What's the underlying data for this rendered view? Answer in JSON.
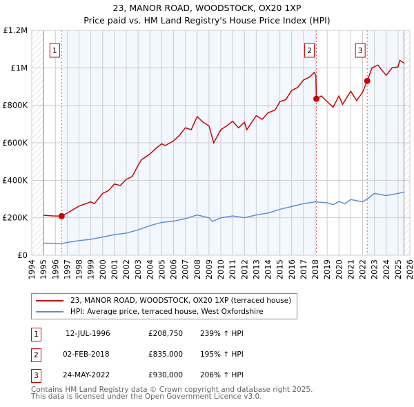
{
  "chart_data": {
    "type": "line",
    "title": "23, MANOR ROAD, WOODSTOCK, OX20 1XP",
    "subtitle": "Price paid vs. HM Land Registry's House Price Index (HPI)",
    "xlim": [
      1994,
      2026
    ],
    "ylim": [
      0,
      1200000
    ],
    "x_ticks": [
      "1994",
      "1995",
      "1996",
      "1997",
      "1998",
      "1999",
      "2000",
      "2001",
      "2002",
      "2003",
      "2004",
      "2005",
      "2006",
      "2007",
      "2008",
      "2009",
      "2010",
      "2011",
      "2012",
      "2013",
      "2014",
      "2015",
      "2016",
      "2017",
      "2018",
      "2019",
      "2020",
      "2021",
      "2022",
      "2023",
      "2024",
      "2025",
      "2026"
    ],
    "y_ticks": [
      {
        "v": 0,
        "label": "£0"
      },
      {
        "v": 200000,
        "label": "£200K"
      },
      {
        "v": 400000,
        "label": "£400K"
      },
      {
        "v": 600000,
        "label": "£600K"
      },
      {
        "v": 800000,
        "label": "£800K"
      },
      {
        "v": 1000000,
        "label": "£1M"
      },
      {
        "v": 1200000,
        "label": "£1.2M"
      }
    ],
    "grid": true,
    "data_range": [
      1995,
      2025.5
    ],
    "series": [
      {
        "name": "23, MANOR ROAD, WOODSTOCK, OX20 1XP (terraced house)",
        "color": "#cc0000",
        "points": [
          [
            1995,
            213000
          ],
          [
            1995.8,
            210000
          ],
          [
            1996.53,
            208750
          ],
          [
            1997,
            225000
          ],
          [
            1998,
            262000
          ],
          [
            1999,
            285000
          ],
          [
            1999.3,
            275000
          ],
          [
            2000,
            330000
          ],
          [
            2000.5,
            345000
          ],
          [
            2001,
            380000
          ],
          [
            2001.5,
            372000
          ],
          [
            2002,
            405000
          ],
          [
            2002.5,
            420000
          ],
          [
            2003,
            480000
          ],
          [
            2003.3,
            510000
          ],
          [
            2004,
            540000
          ],
          [
            2004.5,
            570000
          ],
          [
            2005,
            595000
          ],
          [
            2005.3,
            585000
          ],
          [
            2006,
            610000
          ],
          [
            2006.5,
            640000
          ],
          [
            2007,
            680000
          ],
          [
            2007.5,
            670000
          ],
          [
            2008,
            740000
          ],
          [
            2008.5,
            710000
          ],
          [
            2009,
            690000
          ],
          [
            2009.4,
            600000
          ],
          [
            2010,
            670000
          ],
          [
            2010.5,
            690000
          ],
          [
            2011,
            715000
          ],
          [
            2011.5,
            680000
          ],
          [
            2012,
            710000
          ],
          [
            2012.2,
            670000
          ],
          [
            2013,
            745000
          ],
          [
            2013.5,
            725000
          ],
          [
            2014,
            760000
          ],
          [
            2014.6,
            775000
          ],
          [
            2015,
            820000
          ],
          [
            2015.5,
            830000
          ],
          [
            2016,
            880000
          ],
          [
            2016.5,
            895000
          ],
          [
            2017,
            935000
          ],
          [
            2017.5,
            950000
          ],
          [
            2017.9,
            975000
          ],
          [
            2018.05,
            960000
          ],
          [
            2018.09,
            835000
          ],
          [
            2018.5,
            850000
          ],
          [
            2019,
            820000
          ],
          [
            2019.5,
            790000
          ],
          [
            2020,
            850000
          ],
          [
            2020.3,
            805000
          ],
          [
            2021,
            875000
          ],
          [
            2021.5,
            825000
          ],
          [
            2022,
            870000
          ],
          [
            2022.39,
            930000
          ],
          [
            2022.8,
            1000000
          ],
          [
            2023.3,
            1015000
          ],
          [
            2023.6,
            990000
          ],
          [
            2024,
            960000
          ],
          [
            2024.5,
            1000000
          ],
          [
            2025,
            1005000
          ],
          [
            2025.15,
            1040000
          ],
          [
            2025.5,
            1025000
          ]
        ]
      },
      {
        "name": "HPI: Average price, terraced house, West Oxfordshire",
        "color": "#5b8fd4",
        "points": [
          [
            1995,
            65000
          ],
          [
            1996,
            63000
          ],
          [
            1996.53,
            62000
          ],
          [
            1997,
            68000
          ],
          [
            1998,
            78000
          ],
          [
            1999,
            85000
          ],
          [
            2000,
            97000
          ],
          [
            2001,
            110000
          ],
          [
            2002,
            118000
          ],
          [
            2003,
            135000
          ],
          [
            2004,
            158000
          ],
          [
            2005,
            175000
          ],
          [
            2006,
            182000
          ],
          [
            2007,
            195000
          ],
          [
            2008,
            215000
          ],
          [
            2009,
            200000
          ],
          [
            2009.3,
            180000
          ],
          [
            2010,
            200000
          ],
          [
            2011,
            210000
          ],
          [
            2012,
            200000
          ],
          [
            2013,
            215000
          ],
          [
            2014,
            225000
          ],
          [
            2015,
            245000
          ],
          [
            2016,
            260000
          ],
          [
            2017,
            275000
          ],
          [
            2018,
            285000
          ],
          [
            2019,
            280000
          ],
          [
            2019.5,
            270000
          ],
          [
            2020,
            287000
          ],
          [
            2020.5,
            275000
          ],
          [
            2021,
            297000
          ],
          [
            2022,
            285000
          ],
          [
            2022.5,
            305000
          ],
          [
            2023,
            330000
          ],
          [
            2024,
            318000
          ],
          [
            2025,
            330000
          ],
          [
            2025.5,
            337000
          ]
        ]
      }
    ],
    "sales": [
      {
        "id": "1",
        "x": 1996.53,
        "price": 208750
      },
      {
        "id": "2",
        "x": 2018.09,
        "price": 835000
      },
      {
        "id": "3",
        "x": 2022.39,
        "price": 930000
      }
    ]
  },
  "legend": {
    "items": [
      "23, MANOR ROAD, WOODSTOCK, OX20 1XP (terraced house)",
      "HPI: Average price, terraced house, West Oxfordshire"
    ]
  },
  "table": [
    {
      "id": "1",
      "date": "12-JUL-1996",
      "price": "£208,750",
      "hpi": "239% ↑ HPI"
    },
    {
      "id": "2",
      "date": "02-FEB-2018",
      "price": "£835,000",
      "hpi": "195% ↑ HPI"
    },
    {
      "id": "3",
      "date": "24-MAY-2022",
      "price": "£930,000",
      "hpi": "206% ↑ HPI"
    }
  ],
  "footer": [
    "Contains HM Land Registry data © Crown copyright and database right 2025.",
    "This data is licensed under the Open Government Licence v3.0."
  ]
}
